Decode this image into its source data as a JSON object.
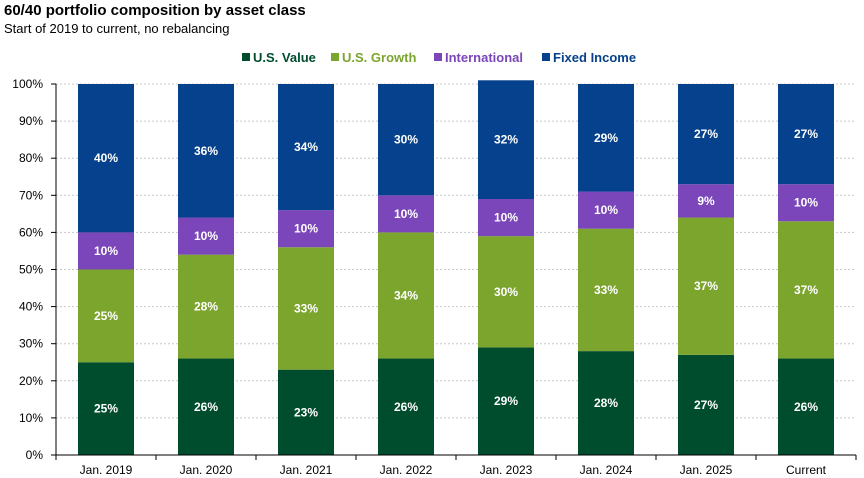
{
  "chart_data": {
    "type": "bar",
    "stacked": true,
    "title": "60/40 portfolio composition by asset class",
    "subtitle": "Start of 2019 to current, no rebalancing",
    "categories": [
      "Jan. 2019",
      "Jan. 2020",
      "Jan. 2021",
      "Jan. 2022",
      "Jan. 2023",
      "Jan. 2024",
      "Jan. 2025",
      "Current"
    ],
    "series": [
      {
        "name": "U.S. Value",
        "color": "#004d2e",
        "values": [
          25,
          26,
          23,
          26,
          29,
          28,
          27,
          26
        ],
        "labels": [
          "25%",
          "26%",
          "23%",
          "26%",
          "29%",
          "28%",
          "27%",
          "26%"
        ]
      },
      {
        "name": "U.S. Growth",
        "color": "#7ca52e",
        "values": [
          25,
          28,
          33,
          34,
          30,
          33,
          37,
          37
        ],
        "labels": [
          "25%",
          "28%",
          "33%",
          "34%",
          "30%",
          "33%",
          "37%",
          "37%"
        ]
      },
      {
        "name": "International",
        "color": "#7a46b9",
        "values": [
          10,
          10,
          10,
          10,
          10,
          10,
          9,
          10
        ],
        "labels": [
          "10%",
          "10%",
          "10%",
          "10%",
          "10%",
          "10%",
          "9%",
          "10%"
        ]
      },
      {
        "name": "Fixed Income",
        "color": "#05418c",
        "values": [
          40,
          36,
          34,
          30,
          32,
          29,
          27,
          27
        ],
        "labels": [
          "40%",
          "36%",
          "34%",
          "30%",
          "32%",
          "29%",
          "27%",
          "27%"
        ]
      }
    ],
    "ylim": [
      0,
      100
    ],
    "yticks": [
      "0%",
      "10%",
      "20%",
      "30%",
      "40%",
      "50%",
      "60%",
      "70%",
      "80%",
      "90%",
      "100%"
    ],
    "grid": true,
    "legend_position": "top"
  }
}
